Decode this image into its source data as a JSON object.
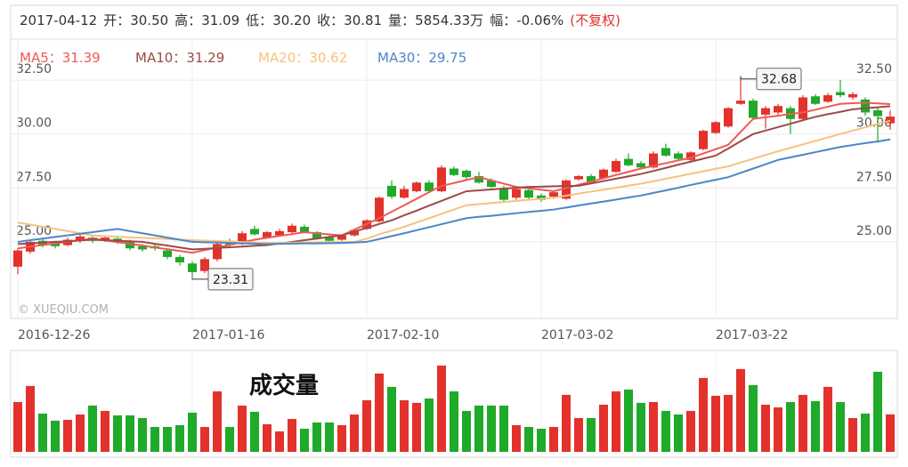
{
  "chart_data": {
    "type": "candlestick",
    "header": {
      "date": "2017-04-12",
      "items": [
        {
          "label": "开",
          "value": "30.50"
        },
        {
          "label": "高",
          "value": "31.09"
        },
        {
          "label": "低",
          "value": "30.20"
        },
        {
          "label": "收",
          "value": "30.81"
        },
        {
          "label": "量",
          "value": "5854.33万"
        },
        {
          "label": "幅",
          "value": "-0.06%"
        }
      ],
      "adjust": "(不复权)"
    },
    "separator": "：",
    "watermark": "© XUEQIU.COM",
    "volume_title": "成交量",
    "x": [
      "2016-12-26",
      null,
      null,
      null,
      null,
      null,
      null,
      null,
      null,
      null,
      null,
      null,
      null,
      null,
      "2017-01-16",
      null,
      null,
      null,
      null,
      null,
      null,
      null,
      null,
      null,
      null,
      null,
      null,
      null,
      "2017-02-10",
      null,
      null,
      null,
      null,
      null,
      null,
      null,
      null,
      null,
      null,
      null,
      null,
      null,
      "2017-03-02",
      null,
      null,
      null,
      null,
      null,
      null,
      null,
      null,
      null,
      null,
      null,
      null,
      null,
      "2017-03-22",
      null,
      null,
      null,
      null,
      null,
      null,
      null,
      null,
      null,
      null,
      null,
      null,
      null,
      null
    ],
    "open": [
      23.85,
      24.55,
      25.05,
      24.95,
      24.85,
      25.05,
      25.2,
      25.05,
      25.15,
      25.0,
      24.8,
      24.8,
      24.6,
      24.3,
      24.0,
      23.65,
      24.2,
      25.05,
      24.9,
      25.6,
      25.2,
      25.3,
      25.45,
      25.7,
      25.45,
      25.2,
      25.1,
      25.3,
      25.6,
      25.95,
      27.6,
      27.05,
      27.35,
      27.75,
      27.35,
      28.4,
      28.3,
      28.05,
      27.85,
      27.5,
      27.05,
      27.4,
      27.15,
      27.1,
      27.0,
      27.9,
      28.05,
      27.95,
      28.25,
      28.85,
      28.65,
      28.45,
      29.35,
      29.1,
      28.8,
      29.3,
      30.05,
      30.35,
      31.4,
      31.55,
      30.9,
      31.0,
      31.2,
      30.7,
      31.75,
      31.5,
      31.95,
      31.7,
      31.6,
      31.1,
      30.5
    ],
    "high": [
      24.7,
      25.1,
      25.15,
      25.05,
      25.2,
      25.35,
      25.3,
      25.3,
      25.2,
      25.1,
      24.9,
      24.9,
      24.7,
      24.4,
      24.1,
      24.3,
      25.0,
      25.15,
      25.5,
      25.75,
      25.5,
      25.6,
      25.85,
      25.8,
      25.5,
      25.3,
      25.35,
      25.6,
      26.05,
      27.1,
      27.85,
      27.6,
      27.8,
      27.85,
      28.55,
      28.5,
      28.35,
      28.25,
      27.95,
      27.6,
      27.5,
      27.5,
      27.25,
      27.35,
      27.9,
      28.1,
      28.15,
      28.4,
      28.85,
      29.1,
      28.75,
      29.2,
      29.55,
      29.2,
      29.2,
      30.2,
      30.6,
      31.25,
      32.68,
      31.65,
      31.3,
      31.4,
      31.3,
      31.8,
      31.85,
      31.9,
      32.5,
      31.95,
      31.7,
      31.2,
      31.09
    ],
    "low": [
      23.5,
      24.45,
      24.75,
      24.7,
      24.8,
      24.95,
      24.95,
      25.0,
      24.9,
      24.6,
      24.55,
      24.6,
      24.2,
      23.9,
      23.31,
      23.55,
      24.1,
      24.75,
      24.85,
      25.3,
      25.15,
      25.25,
      25.4,
      25.4,
      25.1,
      24.95,
      25.05,
      25.25,
      25.55,
      25.9,
      27.0,
      27.0,
      27.3,
      27.3,
      27.3,
      28.05,
      27.9,
      27.7,
      27.5,
      26.85,
      26.95,
      26.95,
      26.85,
      27.0,
      26.95,
      27.85,
      27.7,
      27.9,
      28.2,
      28.5,
      28.4,
      28.4,
      28.95,
      28.8,
      28.75,
      29.25,
      30.0,
      30.3,
      31.35,
      30.7,
      30.25,
      30.9,
      30.0,
      30.6,
      31.35,
      31.45,
      31.7,
      31.6,
      30.85,
      29.6,
      30.2
    ],
    "close": [
      24.6,
      25.0,
      24.85,
      24.8,
      25.1,
      25.25,
      25.05,
      25.2,
      25.0,
      24.7,
      24.65,
      24.7,
      24.3,
      24.05,
      23.6,
      24.2,
      24.9,
      24.85,
      25.4,
      25.35,
      25.45,
      25.5,
      25.75,
      25.45,
      25.15,
      25.05,
      25.3,
      25.55,
      26.0,
      27.05,
      27.1,
      27.45,
      27.75,
      27.35,
      28.45,
      28.1,
      28.0,
      27.75,
      27.55,
      26.95,
      27.45,
      27.05,
      26.95,
      27.3,
      27.85,
      28.05,
      27.75,
      28.35,
      28.75,
      28.55,
      28.45,
      29.1,
      29.0,
      28.85,
      29.15,
      30.15,
      30.55,
      31.2,
      31.55,
      30.75,
      31.2,
      31.3,
      30.7,
      31.7,
      31.4,
      31.8,
      31.8,
      31.85,
      31.0,
      30.83,
      30.81
    ],
    "volume": [
      7780,
      10290,
      5980,
      4870,
      5000,
      5840,
      7230,
      6390,
      5700,
      5700,
      5280,
      3890,
      3890,
      4170,
      6120,
      3890,
      9450,
      3890,
      7230,
      6260,
      4310,
      3200,
      5140,
      3610,
      4590,
      4590,
      4170,
      5840,
      8060,
      12230,
      10150,
      8060,
      7650,
      8340,
      13480,
      9450,
      6390,
      7230,
      7230,
      7230,
      4170,
      3890,
      3610,
      3890,
      8900,
      5280,
      5280,
      7370,
      9450,
      9730,
      7650,
      7780,
      6390,
      5840,
      6390,
      11540,
      8760,
      8900,
      12930,
      10430,
      7370,
      6950,
      7780,
      8900,
      7920,
      10150,
      7780,
      5280,
      5980,
      12510,
      5854.33
    ],
    "volume_ylim": [
      0,
      15000
    ],
    "up_color": "#e2322b",
    "down_color": "#1faa2a",
    "series": [
      {
        "name": "MA5",
        "color": "#ef5a55",
        "values": [
          24.7,
          24.78,
          24.85,
          24.93,
          25.0,
          25.08,
          25.15,
          25.07,
          24.99,
          24.91,
          24.83,
          24.74,
          24.66,
          24.58,
          24.5,
          24.62,
          24.74,
          24.86,
          24.98,
          25.1,
          25.19,
          25.28,
          25.36,
          25.45,
          25.4,
          25.35,
          25.3,
          25.57,
          25.83,
          26.1,
          26.4,
          26.7,
          27.0,
          27.3,
          27.6,
          27.73,
          27.87,
          28.0,
          27.85,
          27.7,
          27.55,
          27.48,
          27.42,
          27.35,
          27.5,
          27.65,
          27.8,
          27.95,
          28.1,
          28.25,
          28.4,
          28.53,
          28.65,
          28.78,
          28.9,
          29.1,
          29.3,
          29.5,
          30.1,
          30.7,
          30.78,
          30.85,
          30.93,
          31.0,
          31.13,
          31.27,
          31.4,
          31.43,
          31.45,
          31.42,
          31.39
        ]
      },
      {
        "name": "MA10",
        "color": "#9c4a47",
        "values": [
          24.9,
          24.93,
          24.97,
          25.0,
          25.03,
          25.07,
          25.1,
          25.08,
          25.05,
          25.03,
          25.0,
          24.91,
          24.83,
          24.74,
          24.65,
          24.68,
          24.72,
          24.75,
          24.78,
          24.82,
          24.85,
          24.93,
          25.0,
          25.08,
          25.15,
          25.23,
          25.3,
          25.48,
          25.65,
          25.83,
          26.0,
          26.23,
          26.45,
          26.68,
          26.9,
          27.13,
          27.35,
          27.39,
          27.43,
          27.47,
          27.51,
          27.55,
          27.56,
          27.58,
          27.59,
          27.6,
          27.71,
          27.82,
          27.93,
          28.04,
          28.15,
          28.29,
          28.43,
          28.58,
          28.72,
          28.86,
          29.0,
          29.33,
          29.67,
          30.0,
          30.16,
          30.32,
          30.48,
          30.64,
          30.8,
          30.92,
          31.03,
          31.15,
          31.2,
          31.24,
          31.29
        ]
      },
      {
        "name": "MA20",
        "color": "#f6c27c",
        "values": [
          25.9,
          25.8,
          25.7,
          25.6,
          25.5,
          25.4,
          25.3,
          25.27,
          25.24,
          25.21,
          25.19,
          25.16,
          25.13,
          25.1,
          25.08,
          25.06,
          25.04,
          25.02,
          24.99,
          24.97,
          24.95,
          24.96,
          24.96,
          24.97,
          24.98,
          24.99,
          24.99,
          25.0,
          25.15,
          25.35,
          25.52,
          25.7,
          25.9,
          26.1,
          26.3,
          26.5,
          26.7,
          26.75,
          26.8,
          26.85,
          26.9,
          26.95,
          27.0,
          27.05,
          27.14,
          27.24,
          27.33,
          27.42,
          27.51,
          27.61,
          27.7,
          27.81,
          27.93,
          28.04,
          28.16,
          28.27,
          28.39,
          28.5,
          28.68,
          28.85,
          29.03,
          29.2,
          29.36,
          29.52,
          29.68,
          29.84,
          30.0,
          30.16,
          30.31,
          30.47,
          30.62
        ]
      },
      {
        "name": "MA30",
        "color": "#4a86c8",
        "values": [
          25.0,
          25.08,
          25.15,
          25.23,
          25.3,
          25.38,
          25.45,
          25.53,
          25.6,
          25.5,
          25.4,
          25.3,
          25.2,
          25.1,
          25.0,
          24.98,
          24.97,
          24.95,
          24.93,
          24.92,
          24.9,
          24.91,
          24.92,
          24.93,
          24.93,
          24.94,
          24.95,
          24.97,
          25.0,
          25.13,
          25.27,
          25.4,
          25.54,
          25.68,
          25.82,
          25.96,
          26.1,
          26.16,
          26.21,
          26.27,
          26.33,
          26.39,
          26.44,
          26.5,
          26.59,
          26.69,
          26.78,
          26.87,
          26.96,
          27.06,
          27.15,
          27.27,
          27.39,
          27.51,
          27.64,
          27.76,
          27.88,
          28.0,
          28.2,
          28.4,
          28.6,
          28.8,
          28.92,
          29.04,
          29.16,
          29.28,
          29.4,
          29.49,
          29.58,
          29.66,
          29.75
        ]
      }
    ],
    "ylim": [
      21.45,
      34.36
    ],
    "yticks": [
      {
        "value": 25,
        "label": "25.00"
      },
      {
        "value": 27.5,
        "label": "27.50"
      },
      {
        "value": 30,
        "label": "30.00"
      },
      {
        "value": 32.5,
        "label": "32.50"
      }
    ],
    "grid": true
  }
}
